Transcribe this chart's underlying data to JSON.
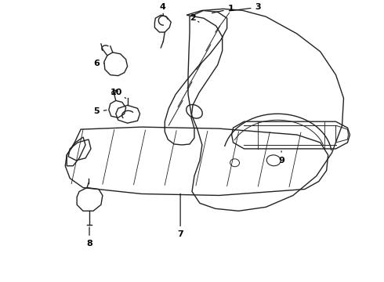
{
  "bg_color": "#ffffff",
  "line_color": "#222222",
  "label_color": "#000000",
  "label_fontsize": 8,
  "label_fontweight": "bold",
  "fig_width": 4.9,
  "fig_height": 3.6,
  "dpi": 100
}
